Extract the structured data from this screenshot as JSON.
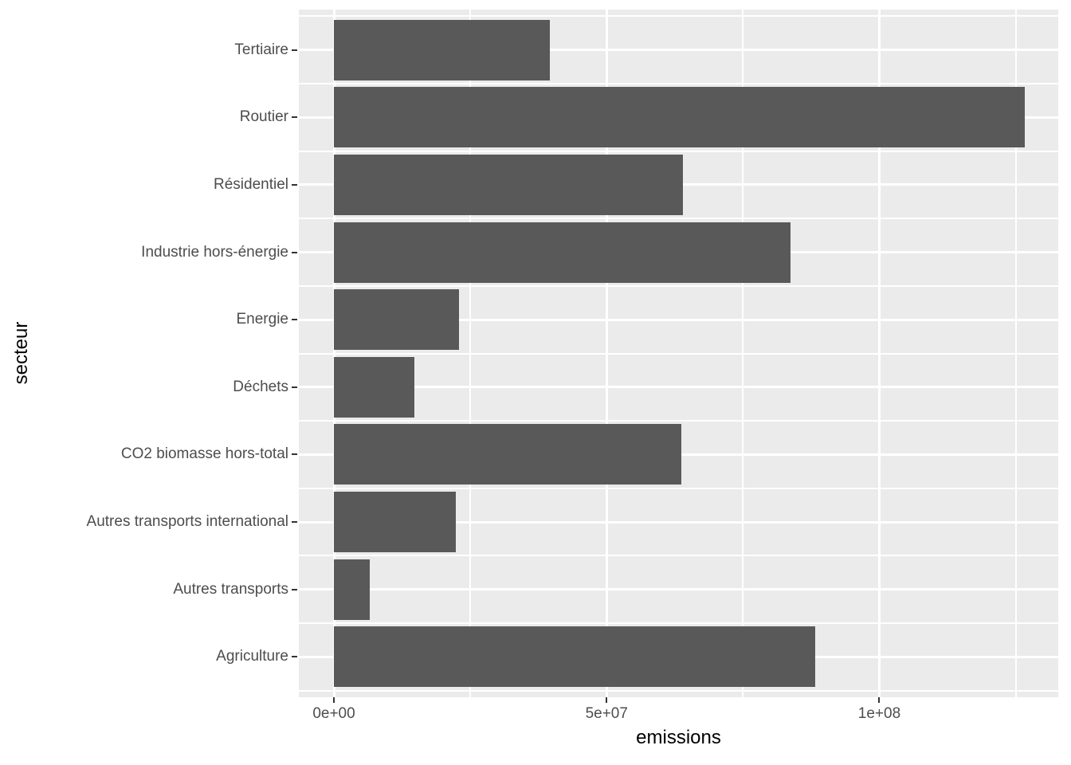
{
  "chart_data": {
    "type": "bar",
    "orientation": "horizontal",
    "title": "",
    "xlabel": "emissions",
    "ylabel": "secteur",
    "categories_top_to_bottom": [
      "Tertiaire",
      "Routier",
      "Résidentiel",
      "Industrie hors-énergie",
      "Energie",
      "Déchets",
      "CO2 biomasse hors-total",
      "Autres transports international",
      "Autres transports",
      "Agriculture"
    ],
    "values": [
      39600000,
      126600000,
      64000000,
      83700000,
      22900000,
      14800000,
      63700000,
      22300000,
      6600000,
      88200000
    ],
    "x_ticks": [
      {
        "value": 0,
        "label": "0e+00"
      },
      {
        "value": 50000000,
        "label": "5e+07"
      },
      {
        "value": 100000000,
        "label": "1e+08"
      }
    ],
    "x_minor_ticks": [
      25000000,
      75000000,
      125000000
    ],
    "xlim": [
      -6430000,
      132800000
    ],
    "grid": true,
    "legend": false,
    "bar_width_fraction": 0.9,
    "style": {
      "panel_background": "#EBEBEB",
      "bar_fill": "#595959",
      "grid_major_color": "#FFFFFF",
      "grid_minor_color": "#FFFFFF",
      "tick_label_color": "#4D4D4D",
      "axis_title_color": "#000000",
      "tick_mark_color": "#333333"
    }
  }
}
